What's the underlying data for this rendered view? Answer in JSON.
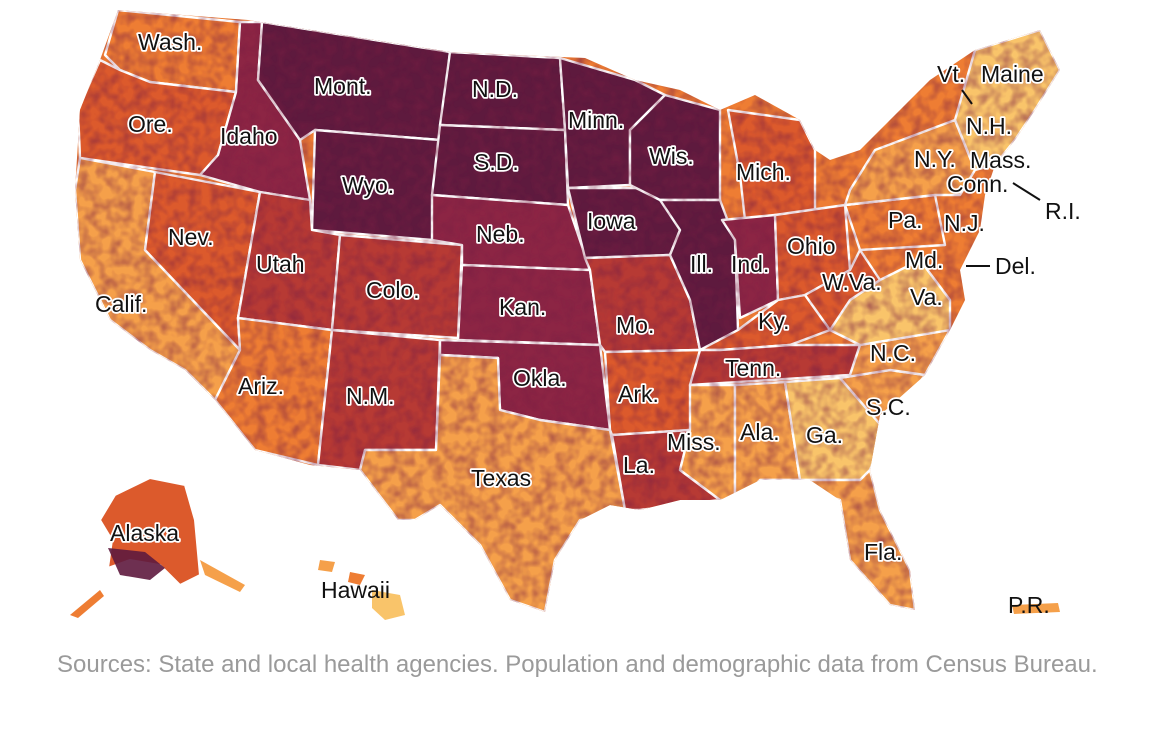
{
  "map": {
    "palette": [
      "#fde3a0",
      "#f9c46a",
      "#f5a04a",
      "#ee7d33",
      "#dc5a2c",
      "#b73a34",
      "#8c2544",
      "#5e1a3e",
      "#3a1032"
    ],
    "labels": {
      "wash": "Wash.",
      "ore": "Ore.",
      "calif": "Calif.",
      "nev": "Nev.",
      "idaho": "Idaho",
      "mont": "Mont.",
      "wyo": "Wyo.",
      "utah": "Utah",
      "colo": "Colo.",
      "ariz": "Ariz.",
      "nm": "N.M.",
      "nd": "N.D.",
      "sd": "S.D.",
      "neb": "Neb.",
      "kan": "Kan.",
      "okla": "Okla.",
      "texas": "Texas",
      "minn": "Minn.",
      "iowa": "Iowa",
      "mo": "Mo.",
      "ark": "Ark.",
      "la": "La.",
      "wis": "Wis.",
      "ill": "Ill.",
      "mich": "Mich.",
      "ind": "Ind.",
      "ohio": "Ohio",
      "ky": "Ky.",
      "tenn": "Tenn.",
      "miss": "Miss.",
      "ala": "Ala.",
      "ga": "Ga.",
      "fla": "Fla.",
      "sc": "S.C.",
      "nc": "N.C.",
      "va": "Va.",
      "wva": "W.Va.",
      "md": "Md.",
      "del": "Del.",
      "pa": "Pa.",
      "nj": "N.J.",
      "ny": "N.Y.",
      "conn": "Conn.",
      "ri": "R.I.",
      "mass": "Mass.",
      "nh": "N.H.",
      "vt": "Vt.",
      "maine": "Maine",
      "alaska": "Alaska",
      "hawaii": "Hawaii",
      "pr": "P.R."
    }
  },
  "sources": "Sources: State and local health agencies. Population and demographic data from Census Bureau."
}
